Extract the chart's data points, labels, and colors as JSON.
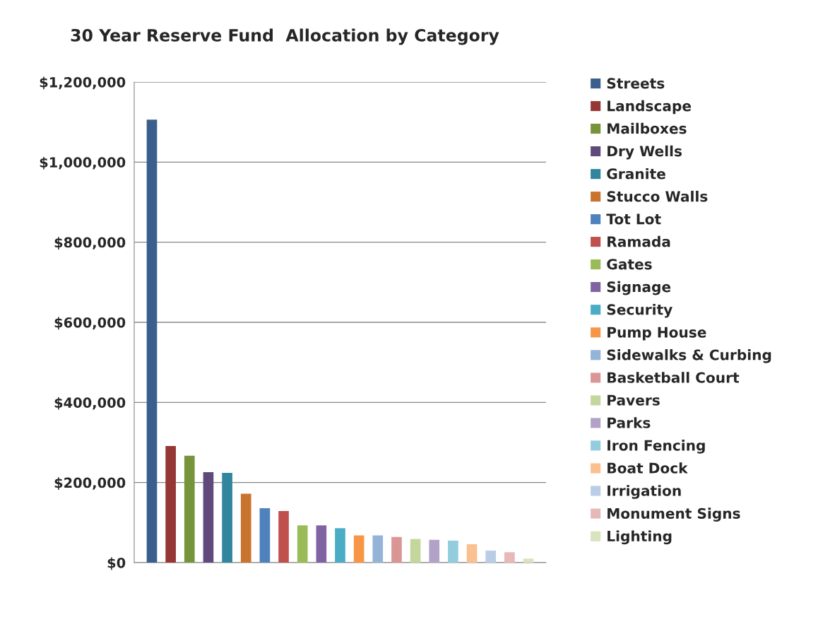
{
  "chart_data": {
    "type": "bar",
    "title": "30 Year Reserve Fund  Allocation by Category",
    "categories": [
      null
    ],
    "series": [
      {
        "name": "Streets",
        "color": "#3a5f8f",
        "values": [
          1106000
        ]
      },
      {
        "name": "Landscape",
        "color": "#953735",
        "values": [
          291000
        ]
      },
      {
        "name": "Mailboxes",
        "color": "#77933c",
        "values": [
          267000
        ]
      },
      {
        "name": "Dry Wells",
        "color": "#604a7b",
        "values": [
          226000
        ]
      },
      {
        "name": "Granite",
        "color": "#31859c",
        "values": [
          224000
        ]
      },
      {
        "name": "Stucco Walls",
        "color": "#c8742e",
        "values": [
          172000
        ]
      },
      {
        "name": "Tot Lot",
        "color": "#4f81bd",
        "values": [
          136000
        ]
      },
      {
        "name": "Ramada",
        "color": "#c0504d",
        "values": [
          129000
        ]
      },
      {
        "name": "Gates",
        "color": "#9bbb59",
        "values": [
          93000
        ]
      },
      {
        "name": "Signage",
        "color": "#8064a2",
        "values": [
          93000
        ]
      },
      {
        "name": "Security",
        "color": "#4bacc6",
        "values": [
          86000
        ]
      },
      {
        "name": "Pump House",
        "color": "#f79646",
        "values": [
          68000
        ]
      },
      {
        "name": "Sidewalks & Curbing",
        "color": "#95b3d7",
        "values": [
          68000
        ]
      },
      {
        "name": "Basketball Court",
        "color": "#d99694",
        "values": [
          64000
        ]
      },
      {
        "name": "Pavers",
        "color": "#c3d69b",
        "values": [
          59000
        ]
      },
      {
        "name": "Parks",
        "color": "#b3a2c7",
        "values": [
          57000
        ]
      },
      {
        "name": "Iron Fencing",
        "color": "#93cddd",
        "values": [
          55000
        ]
      },
      {
        "name": "Boat Dock",
        "color": "#fac090",
        "values": [
          46000
        ]
      },
      {
        "name": "Irrigation",
        "color": "#b9cde5",
        "values": [
          30000
        ]
      },
      {
        "name": "Monument Signs",
        "color": "#e6b9b8",
        "values": [
          26000
        ]
      },
      {
        "name": "Lighting",
        "color": "#d7e4bd",
        "values": [
          10000
        ]
      }
    ],
    "ylim": [
      0,
      1200000
    ],
    "yticks": [
      {
        "value": 0,
        "label": "$0"
      },
      {
        "value": 200000,
        "label": "$200,000"
      },
      {
        "value": 400000,
        "label": "$400,000"
      },
      {
        "value": 600000,
        "label": "$600,000"
      },
      {
        "value": 800000,
        "label": "$800,000"
      },
      {
        "value": 1000000,
        "label": "$1,000,000"
      },
      {
        "value": 1200000,
        "label": "$1,200,000"
      }
    ],
    "grid": "y",
    "legend": "right",
    "tick_labels": "y"
  }
}
